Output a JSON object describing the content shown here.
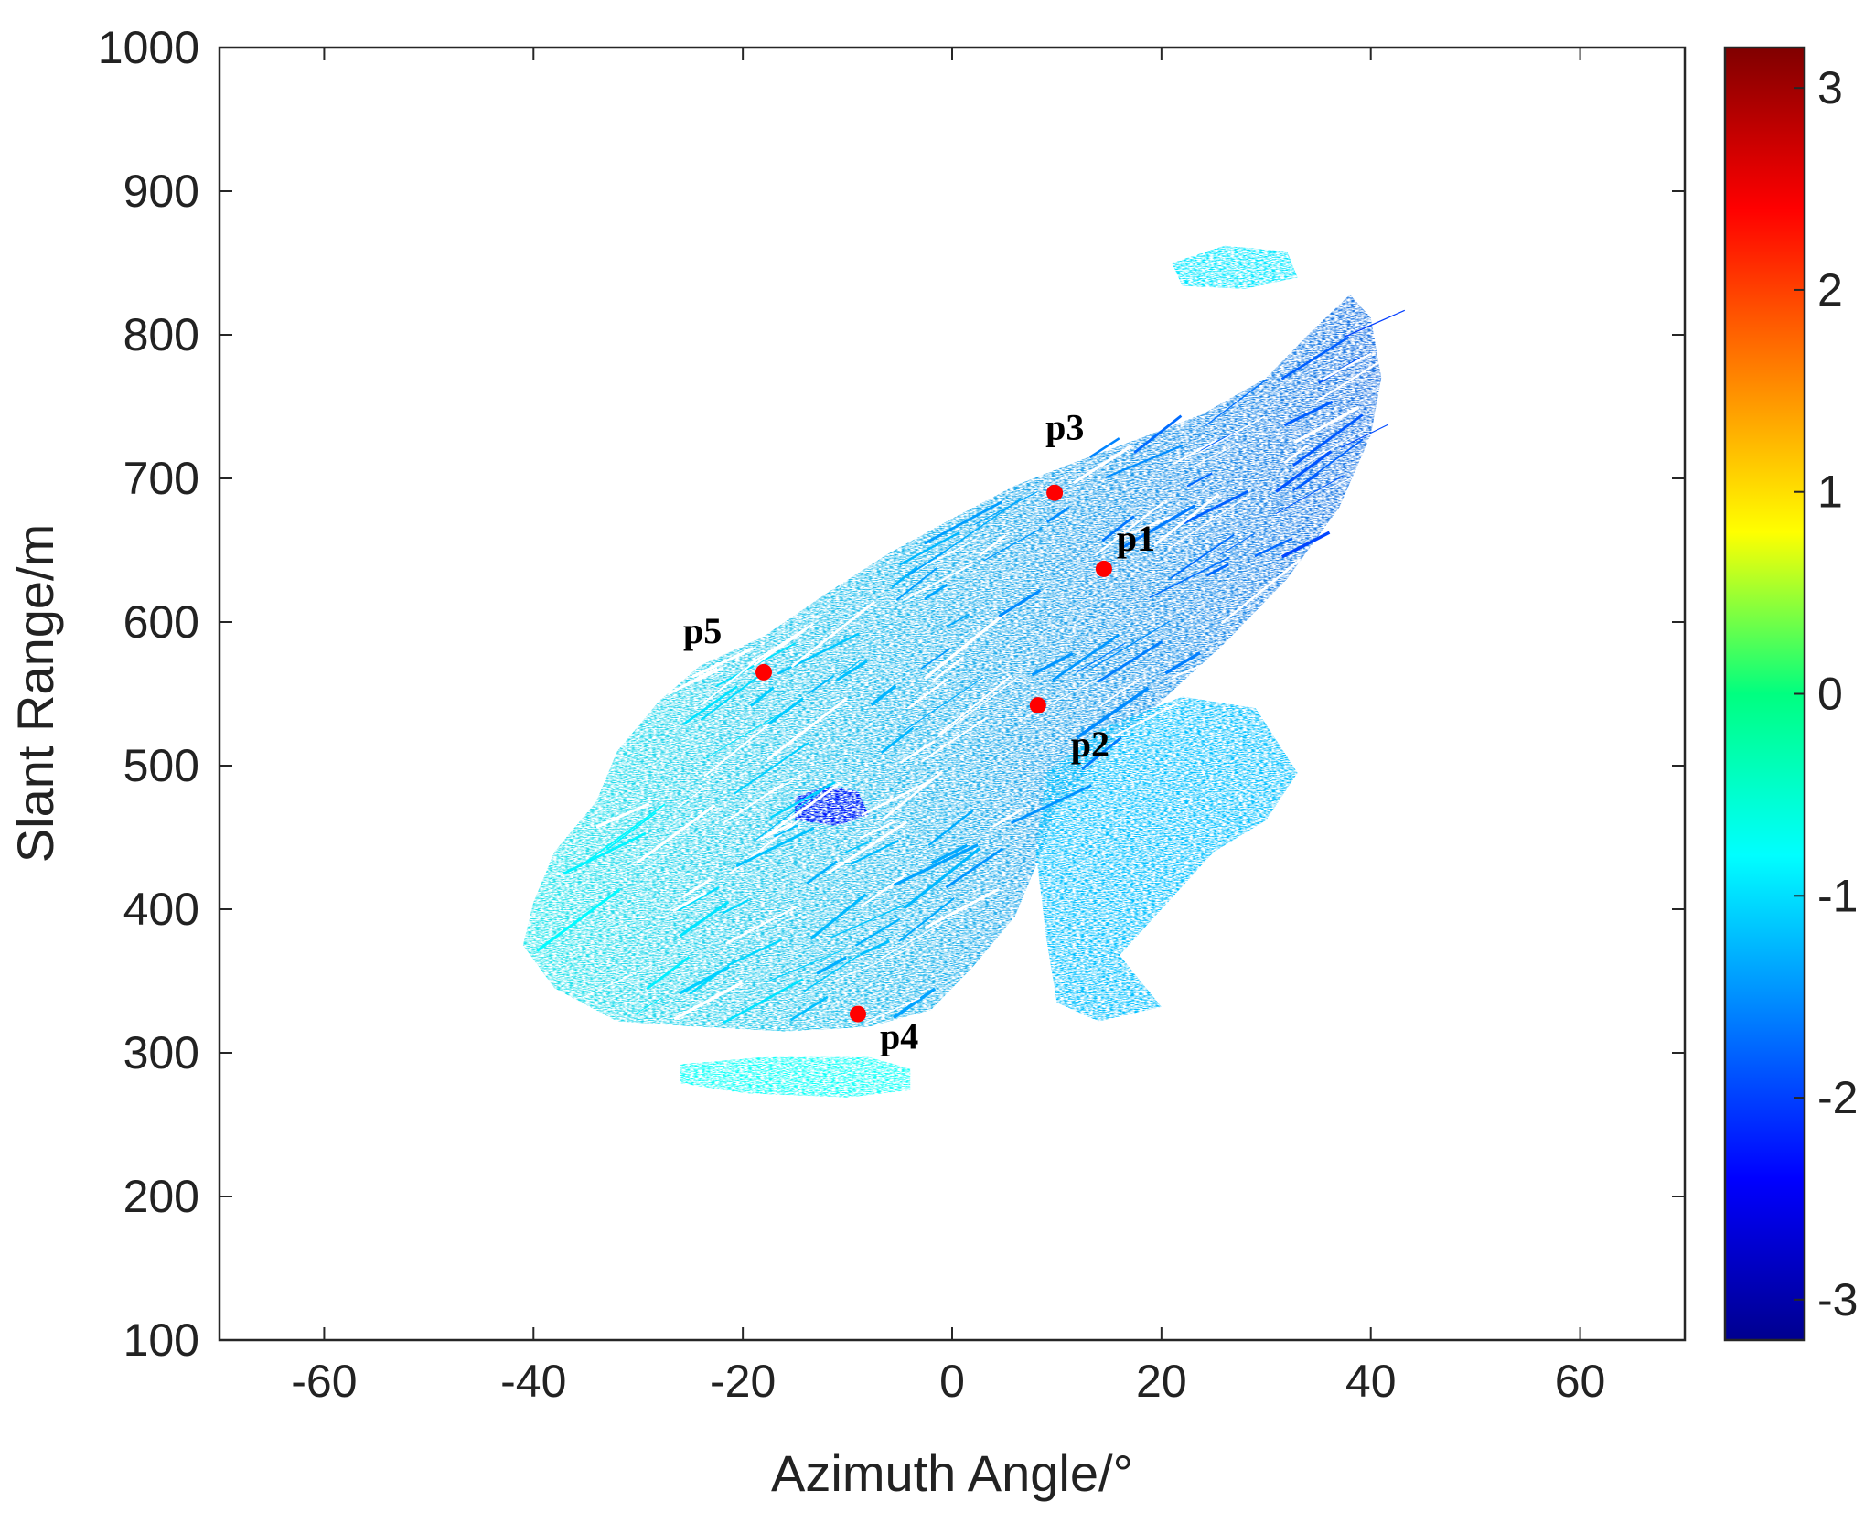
{
  "chart_data": {
    "type": "heatmap",
    "title": "",
    "xlabel": "Azimuth Angle/°",
    "ylabel": "Slant Range/m",
    "xlim": [
      -70,
      70
    ],
    "ylim": [
      100,
      1000
    ],
    "xticks": [
      -60,
      -40,
      -20,
      0,
      20,
      40,
      60
    ],
    "yticks": [
      100,
      200,
      300,
      400,
      500,
      600,
      700,
      800,
      900,
      1000
    ],
    "grid": false,
    "colormap": "jet",
    "colorbar": {
      "range": [
        -3.2,
        3.2
      ],
      "ticks": [
        -3,
        -2,
        -1,
        0,
        1,
        2,
        3
      ]
    },
    "background_color": "#ffffff",
    "marker_color": "#ff0000",
    "points": [
      {
        "label": "p1",
        "x": 14.5,
        "y": 637
      },
      {
        "label": "p2",
        "x": 8.2,
        "y": 542
      },
      {
        "label": "p3",
        "x": 9.8,
        "y": 690
      },
      {
        "label": "p4",
        "x": -9.0,
        "y": 327
      },
      {
        "label": "p5",
        "x": -18.0,
        "y": 565
      }
    ],
    "regions": [
      {
        "name": "main-scatter",
        "value_range": [
          -1.9,
          -0.6
        ],
        "outline": [
          [
            -40,
            405
          ],
          [
            -38,
            440
          ],
          [
            -34,
            475
          ],
          [
            -32,
            510
          ],
          [
            -28,
            545
          ],
          [
            -24,
            570
          ],
          [
            -18,
            590
          ],
          [
            -12,
            620
          ],
          [
            -6,
            648
          ],
          [
            0,
            672
          ],
          [
            6,
            695
          ],
          [
            12,
            712
          ],
          [
            18,
            728
          ],
          [
            24,
            745
          ],
          [
            30,
            770
          ],
          [
            34,
            800
          ],
          [
            38,
            828
          ],
          [
            40,
            812
          ],
          [
            41,
            770
          ],
          [
            40,
            730
          ],
          [
            37,
            680
          ],
          [
            32,
            630
          ],
          [
            26,
            585
          ],
          [
            20,
            545
          ],
          [
            14,
            505
          ],
          [
            10,
            470
          ],
          [
            8,
            430
          ],
          [
            6,
            395
          ],
          [
            2,
            360
          ],
          [
            -2,
            330
          ],
          [
            -8,
            318
          ],
          [
            -16,
            315
          ],
          [
            -24,
            318
          ],
          [
            -32,
            322
          ],
          [
            -38,
            345
          ],
          [
            -41,
            375
          ]
        ]
      },
      {
        "name": "lower-right-lobe",
        "value_range": [
          -1.5,
          -0.9
        ],
        "outline": [
          [
            9,
            495
          ],
          [
            14,
            525
          ],
          [
            22,
            548
          ],
          [
            29,
            540
          ],
          [
            33,
            495
          ],
          [
            30,
            462
          ],
          [
            25,
            440
          ],
          [
            20,
            400
          ],
          [
            16,
            368
          ],
          [
            20,
            332
          ],
          [
            14,
            322
          ],
          [
            10,
            335
          ],
          [
            9,
            380
          ],
          [
            8,
            440
          ]
        ]
      },
      {
        "name": "bottom-strip",
        "value_range": [
          -0.9,
          -0.6
        ],
        "outline": [
          [
            -26,
            292
          ],
          [
            -18,
            297
          ],
          [
            -8,
            297
          ],
          [
            -4,
            289
          ],
          [
            -4,
            274
          ],
          [
            -10,
            269
          ],
          [
            -20,
            272
          ],
          [
            -26,
            279
          ]
        ]
      },
      {
        "name": "top-cluster",
        "value_range": [
          -1.1,
          -0.8
        ],
        "outline": [
          [
            21,
            850
          ],
          [
            26,
            862
          ],
          [
            32,
            858
          ],
          [
            33,
            840
          ],
          [
            28,
            832
          ],
          [
            22,
            834
          ]
        ]
      },
      {
        "name": "dark-patch",
        "value_range": [
          -2.6,
          -2.1
        ],
        "outline": [
          [
            -15,
            478
          ],
          [
            -12,
            486
          ],
          [
            -9,
            482
          ],
          [
            -8,
            466
          ],
          [
            -11,
            458
          ],
          [
            -15,
            462
          ]
        ]
      }
    ]
  },
  "labels": {
    "p1": "p1",
    "p2": "p2",
    "p3": "p3",
    "p4": "p4",
    "p5": "p5"
  }
}
